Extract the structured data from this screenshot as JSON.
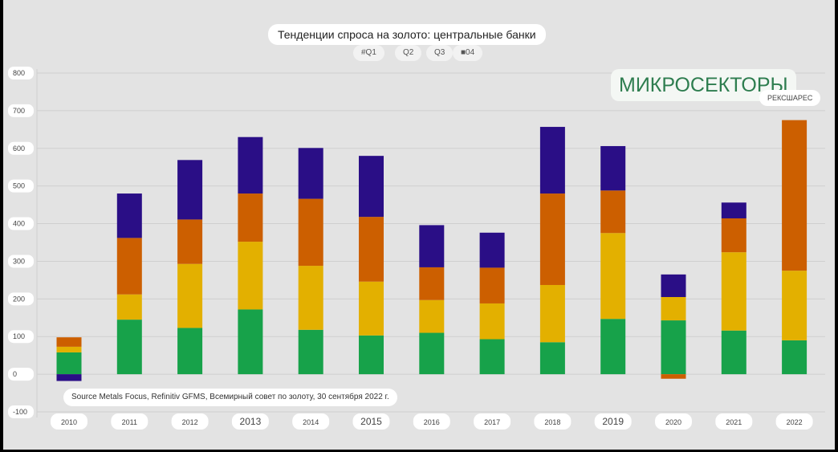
{
  "title": "Тенденции спроса на золото: центральные банки",
  "legend": [
    "#Q1",
    "Q2",
    "Q3",
    "■04"
  ],
  "brand": {
    "name": "МИКРОСЕКТОРЫ",
    "sub": "РЕКСШАРЕС"
  },
  "source": "Source Metals Focus, Refinitiv GFMS, Всемирный совет по золоту, 30 сентября 2022 г.",
  "colors": {
    "q1": "#17a24a",
    "q2": "#e3b000",
    "q3": "#cc5f00",
    "q4": "#2a0e86",
    "grid": "#cfcfcf",
    "label_bg": "#ffffff"
  },
  "chart_data": {
    "type": "bar",
    "stacked": true,
    "title": "Тенденции спроса на золото: центральные банки",
    "categories": [
      "2010",
      "2011",
      "2012",
      "2013",
      "2014",
      "2015",
      "2016",
      "2017",
      "2018",
      "2019",
      "2020",
      "2021",
      "2022"
    ],
    "series": [
      {
        "name": "#Q1",
        "values": [
          58,
          145,
          123,
          172,
          118,
          103,
          110,
          93,
          85,
          147,
          143,
          116,
          90
        ]
      },
      {
        "name": "Q2",
        "values": [
          15,
          67,
          170,
          180,
          170,
          143,
          87,
          95,
          152,
          228,
          62,
          208,
          185
        ]
      },
      {
        "name": "Q3",
        "values": [
          25,
          150,
          118,
          128,
          178,
          172,
          87,
          95,
          243,
          113,
          0,
          90,
          400
        ]
      },
      {
        "name": "■04",
        "values": [
          -18,
          118,
          158,
          150,
          135,
          162,
          112,
          93,
          177,
          118,
          60,
          42,
          0
        ]
      }
    ],
    "extra_negative": [
      0,
      0,
      0,
      0,
      0,
      0,
      0,
      0,
      0,
      0,
      -12,
      0,
      0
    ],
    "y_ticks": [
      800,
      700,
      600,
      500,
      400,
      300,
      200,
      100,
      0,
      -100
    ],
    "ylim": [
      -100,
      800
    ],
    "xlabel": "",
    "ylabel": "",
    "grid": true
  }
}
